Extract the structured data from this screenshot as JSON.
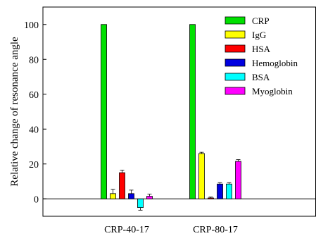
{
  "chart_data": {
    "type": "bar",
    "title": "",
    "xlabel": "",
    "ylabel": "Relative change of resonance angle",
    "categories": [
      "CRP-40-17",
      "CRP-80-17"
    ],
    "ylim": [
      -10,
      110
    ],
    "yticks": [
      0,
      20,
      40,
      60,
      80,
      100
    ],
    "grid": false,
    "legend_position": "top-right",
    "series": [
      {
        "name": "CRP",
        "color": "#00e000",
        "values": [
          100,
          100
        ],
        "errors": [
          0,
          0
        ]
      },
      {
        "name": "IgG",
        "color": "#ffff00",
        "values": [
          3,
          26
        ],
        "errors": [
          2.5,
          0.7
        ]
      },
      {
        "name": "HSA",
        "color": "#ff0000",
        "values": [
          15,
          0.5
        ],
        "errors": [
          1.5,
          0.5
        ]
      },
      {
        "name": "Hemoglobin",
        "color": "#0000e0",
        "values": [
          3,
          8.5
        ],
        "errors": [
          2,
          0.8
        ]
      },
      {
        "name": "BSA",
        "color": "#00ffff",
        "values": [
          -5,
          8.5
        ],
        "errors": [
          1.5,
          0.8
        ]
      },
      {
        "name": "Myoglobin",
        "color": "#ff00ff",
        "values": [
          1.5,
          21.5
        ],
        "errors": [
          1.2,
          1
        ]
      }
    ]
  }
}
